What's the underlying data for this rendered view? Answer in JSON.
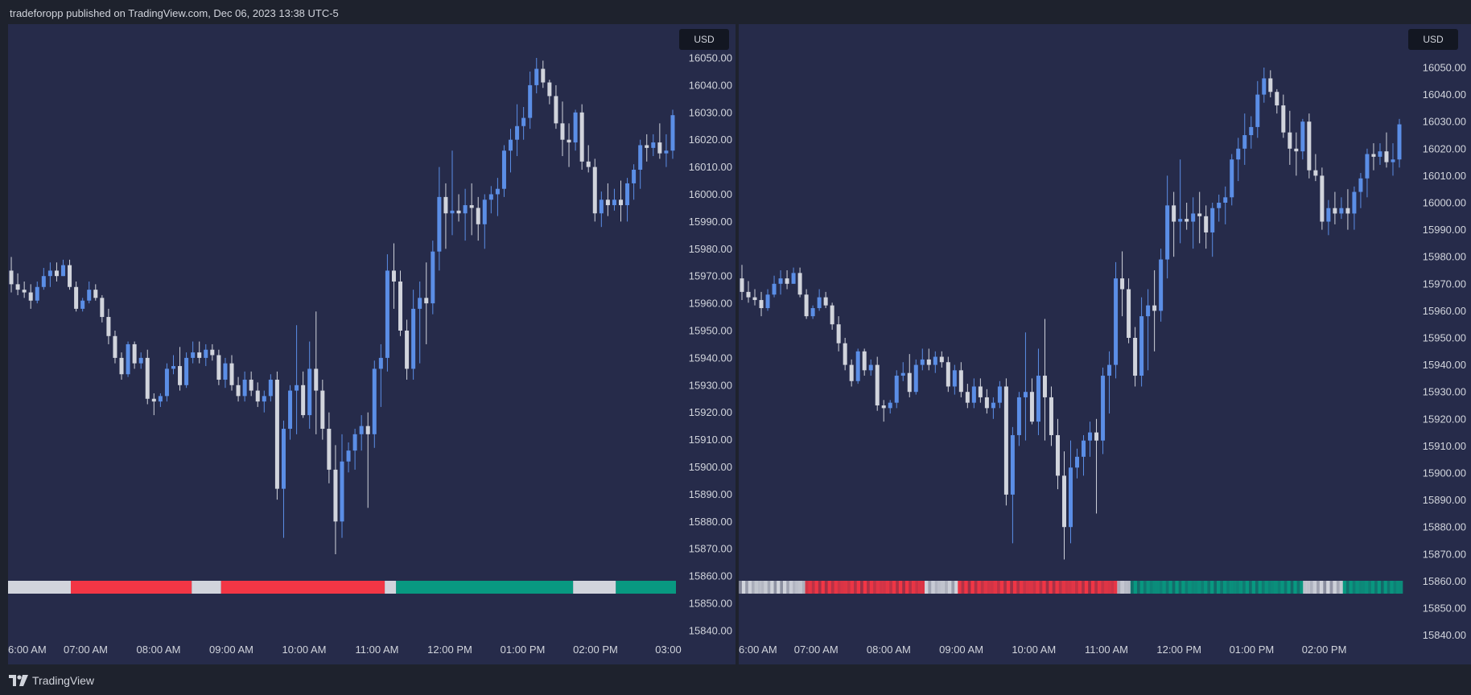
{
  "header": {
    "text": "tradeforopp published on TradingView.com, Dec 06, 2023 13:38 UTC-5"
  },
  "footer": {
    "brand": "TradingView",
    "logo_icon": "tradingview-logo-icon"
  },
  "colors": {
    "background": "#262b4a",
    "frame": "#1e222d",
    "up_candle": "#5b8ee6",
    "down_candle": "#d1d4dc",
    "bar_red": "#f23645",
    "bar_gray": "#d1d4dc",
    "bar_green": "#089981"
  },
  "chart_data": [
    {
      "type": "candlestick",
      "name": "left",
      "currency_badge": "USD",
      "y_ticks": [
        16050,
        16040,
        16030,
        16020,
        16010,
        16000,
        15990,
        15980,
        15970,
        15960,
        15950,
        15940,
        15930,
        15920,
        15910,
        15900,
        15890,
        15880,
        15870,
        15860,
        15850,
        15840
      ],
      "x_ticks": [
        "6:00 AM",
        "07:00 AM",
        "08:00 AM",
        "09:00 AM",
        "10:00 AM",
        "11:00 AM",
        "12:00 PM",
        "01:00 PM",
        "02:00 PM",
        "03:00"
      ],
      "ylim": [
        15838,
        16061
      ],
      "grid": false,
      "session_bar_segments": [
        {
          "state": "neutral",
          "from": 0.0,
          "to": 0.094
        },
        {
          "state": "bearish",
          "from": 0.094,
          "to": 0.275
        },
        {
          "state": "neutral",
          "from": 0.275,
          "to": 0.319
        },
        {
          "state": "bearish",
          "from": 0.319,
          "to": 0.564
        },
        {
          "state": "neutral",
          "from": 0.564,
          "to": 0.581
        },
        {
          "state": "bullish",
          "from": 0.581,
          "to": 0.846
        },
        {
          "state": "neutral",
          "from": 0.846,
          "to": 0.91
        },
        {
          "state": "bullish",
          "from": 0.91,
          "to": 1.0
        }
      ]
    },
    {
      "type": "candlestick",
      "name": "right",
      "currency_badge": "USD",
      "y_ticks": [
        16050,
        16040,
        16030,
        16020,
        16010,
        16000,
        15990,
        15980,
        15970,
        15960,
        15950,
        15940,
        15930,
        15920,
        15910,
        15900,
        15890,
        15880,
        15870,
        15860,
        15850,
        15840
      ],
      "x_ticks": [
        "6:00 AM",
        "07:00 AM",
        "08:00 AM",
        "09:00 AM",
        "10:00 AM",
        "11:00 AM",
        "12:00 PM",
        "01:00 PM",
        "02:00 PM"
      ],
      "ylim": [
        15838,
        16061
      ],
      "grid": false,
      "session_bar_segments": [
        {
          "state": "neutral",
          "from": 0.0,
          "to": 0.1
        },
        {
          "state": "bearish",
          "from": 0.1,
          "to": 0.28
        },
        {
          "state": "neutral",
          "from": 0.28,
          "to": 0.33
        },
        {
          "state": "bearish",
          "from": 0.33,
          "to": 0.57
        },
        {
          "state": "neutral",
          "from": 0.57,
          "to": 0.59
        },
        {
          "state": "bullish",
          "from": 0.59,
          "to": 0.85
        },
        {
          "state": "neutral",
          "from": 0.85,
          "to": 0.91
        },
        {
          "state": "bullish",
          "from": 0.91,
          "to": 1.0
        }
      ]
    }
  ],
  "ohlc": [
    [
      15972,
      15977,
      15964,
      15967
    ],
    [
      15967,
      15971,
      15963,
      15965
    ],
    [
      15965,
      15968,
      15962,
      15964
    ],
    [
      15964,
      15967,
      15958,
      15961
    ],
    [
      15961,
      15968,
      15960,
      15966
    ],
    [
      15966,
      15973,
      15965,
      15970
    ],
    [
      15970,
      15975,
      15966,
      15972
    ],
    [
      15972,
      15975,
      15968,
      15970
    ],
    [
      15970,
      15976,
      15970,
      15974
    ],
    [
      15974,
      15976,
      15965,
      15966
    ],
    [
      15966,
      15968,
      15957,
      15958
    ],
    [
      15958,
      15962,
      15957,
      15961
    ],
    [
      15961,
      15968,
      15960,
      15965
    ],
    [
      15965,
      15967,
      15961,
      15962
    ],
    [
      15962,
      15963,
      15953,
      15955
    ],
    [
      15955,
      15958,
      15945,
      15948
    ],
    [
      15948,
      15950,
      15938,
      15940
    ],
    [
      15940,
      15942,
      15932,
      15934
    ],
    [
      15934,
      15946,
      15933,
      15945
    ],
    [
      15945,
      15946,
      15936,
      15938
    ],
    [
      15938,
      15942,
      15936,
      15940
    ],
    [
      15940,
      15943,
      15923,
      15925
    ],
    [
      15925,
      15927,
      15919,
      15924
    ],
    [
      15924,
      15927,
      15922,
      15926
    ],
    [
      15926,
      15938,
      15924,
      15936
    ],
    [
      15936,
      15941,
      15934,
      15937
    ],
    [
      15937,
      15944,
      15928,
      15930
    ],
    [
      15930,
      15942,
      15929,
      15940
    ],
    [
      15940,
      15946,
      15938,
      15942
    ],
    [
      15942,
      15946,
      15938,
      15940
    ],
    [
      15940,
      15945,
      15937,
      15943
    ],
    [
      15943,
      15945,
      15939,
      15941
    ],
    [
      15941,
      15943,
      15930,
      15932
    ],
    [
      15932,
      15940,
      15929,
      15938
    ],
    [
      15938,
      15941,
      15928,
      15930
    ],
    [
      15930,
      15933,
      15924,
      15926
    ],
    [
      15926,
      15935,
      15924,
      15932
    ],
    [
      15932,
      15935,
      15926,
      15928
    ],
    [
      15928,
      15931,
      15922,
      15924
    ],
    [
      15924,
      15928,
      15920,
      15926
    ],
    [
      15926,
      15934,
      15924,
      15932
    ],
    [
      15932,
      15935,
      15888,
      15892
    ],
    [
      15892,
      15917,
      15874,
      15914
    ],
    [
      15914,
      15930,
      15910,
      15928
    ],
    [
      15928,
      15952,
      15912,
      15930
    ],
    [
      15930,
      15935,
      15918,
      15919
    ],
    [
      15919,
      15946,
      15914,
      15936
    ],
    [
      15936,
      15957,
      15912,
      15928
    ],
    [
      15928,
      15932,
      15910,
      15914
    ],
    [
      15914,
      15920,
      15894,
      15899
    ],
    [
      15899,
      15908,
      15868,
      15880
    ],
    [
      15880,
      15912,
      15874,
      15902
    ],
    [
      15902,
      15909,
      15898,
      15906
    ],
    [
      15906,
      15914,
      15899,
      15912
    ],
    [
      15912,
      15919,
      15906,
      15915
    ],
    [
      15915,
      15920,
      15885,
      15912
    ],
    [
      15912,
      15939,
      15907,
      15936
    ],
    [
      15936,
      15945,
      15922,
      15940
    ],
    [
      15940,
      15978,
      15935,
      15972
    ],
    [
      15972,
      15982,
      15958,
      15968
    ],
    [
      15968,
      15972,
      15948,
      15950
    ],
    [
      15950,
      15954,
      15932,
      15936
    ],
    [
      15936,
      15965,
      15932,
      15958
    ],
    [
      15958,
      15968,
      15938,
      15962
    ],
    [
      15962,
      15975,
      15945,
      15960
    ],
    [
      15960,
      15983,
      15956,
      15979
    ],
    [
      15979,
      16010,
      15972,
      15999
    ],
    [
      15999,
      16004,
      15980,
      15993
    ],
    [
      15993,
      16016,
      15985,
      15994
    ],
    [
      15994,
      16000,
      15990,
      15993
    ],
    [
      15993,
      16002,
      15983,
      15996
    ],
    [
      15996,
      16004,
      15985,
      15995
    ],
    [
      15995,
      15999,
      15983,
      15989
    ],
    [
      15989,
      16000,
      15980,
      15998
    ],
    [
      15998,
      16003,
      15993,
      16000
    ],
    [
      16000,
      16006,
      15992,
      16002
    ],
    [
      16002,
      16018,
      15999,
      16016
    ],
    [
      16016,
      16024,
      16008,
      16020
    ],
    [
      16020,
      16033,
      16014,
      16025
    ],
    [
      16025,
      16032,
      16020,
      16028
    ],
    [
      16028,
      16045,
      16024,
      16040
    ],
    [
      16040,
      16050,
      16037,
      16046
    ],
    [
      16046,
      16049,
      16039,
      16041
    ],
    [
      16041,
      16042,
      16033,
      16036
    ],
    [
      16036,
      16040,
      16024,
      16026
    ],
    [
      16026,
      16034,
      16014,
      16020
    ],
    [
      16020,
      16026,
      16010,
      16019
    ],
    [
      16019,
      16031,
      16016,
      16030
    ],
    [
      16030,
      16033,
      16009,
      16012
    ],
    [
      16012,
      16018,
      16008,
      16010
    ],
    [
      16010,
      16013,
      15990,
      15993
    ],
    [
      15993,
      16001,
      15988,
      15998
    ],
    [
      15998,
      16004,
      15992,
      15996
    ],
    [
      15996,
      16002,
      15994,
      15998
    ],
    [
      15998,
      16005,
      15990,
      15996
    ],
    [
      15996,
      16006,
      15990,
      16004
    ],
    [
      16004,
      16011,
      15998,
      16009
    ],
    [
      16009,
      16020,
      16002,
      16018
    ],
    [
      16018,
      16022,
      16012,
      16017
    ],
    [
      16017,
      16022,
      16014,
      16019
    ],
    [
      16019,
      16026,
      16013,
      16015
    ],
    [
      16015,
      16022,
      16010,
      16016
    ],
    [
      16016,
      16031,
      16013,
      16029
    ]
  ]
}
